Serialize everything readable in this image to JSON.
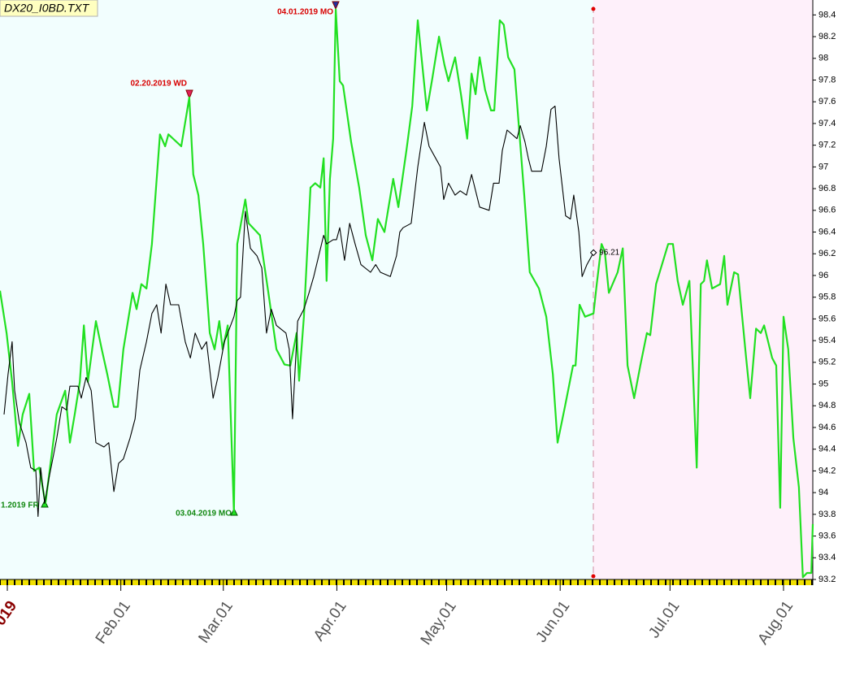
{
  "chart_data": {
    "type": "line",
    "title": "DX20_I0BD.TXT",
    "annotations": [
      "04.01.2019 MO",
      "02.20.2019 WD",
      "03.04.2019 MO",
      "1.2019 FR"
    ],
    "xlim": [
      -1,
      221
    ],
    "ylim": [
      93.2,
      98.5
    ],
    "xticks": [
      {
        "value": 1,
        "label": "019"
      },
      {
        "value": 32,
        "label": "Feb.01"
      },
      {
        "value": 60,
        "label": "Mar.01"
      },
      {
        "value": 91,
        "label": "Apr.01"
      },
      {
        "value": 121,
        "label": "May.01"
      },
      {
        "value": 152,
        "label": "Jun.01"
      },
      {
        "value": 182,
        "label": "Jul.01"
      },
      {
        "value": 213,
        "label": "Aug.01"
      }
    ],
    "yticks": [
      93.2,
      93.4,
      93.6,
      93.8,
      94,
      94.2,
      94.4,
      94.6,
      94.8,
      95,
      95.2,
      95.4,
      95.6,
      95.8,
      96,
      96.2,
      96.4,
      96.6,
      96.8,
      97,
      97.2,
      97.4,
      97.6,
      97.8,
      98,
      98.2,
      98.4
    ],
    "series": [
      {
        "color": "#22e022",
        "x": [
          -1,
          0.8,
          2.3,
          3.9,
          5.2,
          7.0,
          8.3,
          9.7,
          11.4,
          12.8,
          14.5,
          16.8,
          18.1,
          19.4,
          20.8,
          21.9,
          23.0,
          25.2,
          26.8,
          28.3,
          30.1,
          31.2,
          32.7,
          35.2,
          36.3,
          37.6,
          39.0,
          40.5,
          42.7,
          44.1,
          45.0,
          48.5,
          50.7,
          51.8,
          53.2,
          54.5,
          56.3,
          57.6,
          58.9,
          59.8,
          61.2,
          62.9,
          63.8,
          66.0,
          66.9,
          70.0,
          72.3,
          74.5,
          76.7,
          78.3,
          80.0,
          80.7,
          82.0,
          83.8,
          85.1,
          86.5,
          87.4,
          88.2,
          89.1,
          90.0,
          90.7,
          91.8,
          92.7,
          94.9,
          97.1,
          98.9,
          100.7,
          102.2,
          104.0,
          106.4,
          107.8,
          110.0,
          111.6,
          113.1,
          115.6,
          117.1,
          118.9,
          120.4,
          121.5,
          123.3,
          124.9,
          126.6,
          127.8,
          128.9,
          130.0,
          131.5,
          133.1,
          134.0,
          135.5,
          136.6,
          137.8,
          139.5,
          142.2,
          143.7,
          146.2,
          148.2,
          150.0,
          151.3,
          153.3,
          155.5,
          156.2,
          157.3,
          158.8,
          161.1,
          162.0,
          163.3,
          164.2,
          165.3,
          167.7,
          169.1,
          170.4,
          172.2,
          173.9,
          175.7,
          176.6,
          178.2,
          181.5,
          182.8,
          184.1,
          185.5,
          187.3,
          189.3,
          190.4,
          191.3,
          192.1,
          193.5,
          195.7,
          196.8,
          197.7,
          199.5,
          200.6,
          202.8,
          203.9,
          205.5,
          206.8,
          207.7,
          209.9,
          211.0,
          212.1,
          213.0,
          214.3,
          215.7,
          217.2,
          218.3,
          219.4,
          220.6,
          221.0
        ],
        "values": [
          95.86,
          95.47,
          95.02,
          94.43,
          94.72,
          94.91,
          94.2,
          94.23,
          93.9,
          94.27,
          94.72,
          94.94,
          94.46,
          94.72,
          95.02,
          95.54,
          95.02,
          95.58,
          95.32,
          95.09,
          94.79,
          94.79,
          95.32,
          95.84,
          95.69,
          95.92,
          95.88,
          96.29,
          97.3,
          97.19,
          97.3,
          97.19,
          97.64,
          96.93,
          96.74,
          96.29,
          95.47,
          95.32,
          95.58,
          95.32,
          95.54,
          93.82,
          96.29,
          96.7,
          96.48,
          96.37,
          95.84,
          95.32,
          95.18,
          95.17,
          95.47,
          95.03,
          95.62,
          96.81,
          96.85,
          96.81,
          97.08,
          95.95,
          96.89,
          97.26,
          98.45,
          97.79,
          97.75,
          97.23,
          96.81,
          96.37,
          96.14,
          96.52,
          96.4,
          96.89,
          96.63,
          97.15,
          97.56,
          98.35,
          97.52,
          97.82,
          98.2,
          97.94,
          97.79,
          98.01,
          97.67,
          97.26,
          97.86,
          97.67,
          98.01,
          97.71,
          97.52,
          97.52,
          98.35,
          98.31,
          98.01,
          97.9,
          96.74,
          96.03,
          95.88,
          95.62,
          95.09,
          94.46,
          94.79,
          95.17,
          95.17,
          95.73,
          95.62,
          95.65,
          95.92,
          96.29,
          96.22,
          95.84,
          96.03,
          96.25,
          95.17,
          94.87,
          95.17,
          95.47,
          95.45,
          95.92,
          96.29,
          96.29,
          95.95,
          95.73,
          95.95,
          94.23,
          95.92,
          95.95,
          96.14,
          95.88,
          95.92,
          96.18,
          95.73,
          96.03,
          96.01,
          95.24,
          94.87,
          95.51,
          95.47,
          95.54,
          95.24,
          95.17,
          93.86,
          95.62,
          95.32,
          94.5,
          94.05,
          93.22,
          93.26,
          93.26,
          93.71
        ]
      },
      {
        "color": "#000000",
        "x": [
          0.1,
          1.2,
          2.3,
          3.0,
          4.3,
          6.1,
          7.4,
          8.8,
          9.4,
          10.1,
          11.2,
          12.3,
          13.4,
          14.5,
          15.9,
          17.2,
          18.1,
          20.3,
          21.2,
          22.5,
          23.9,
          25.2,
          27.4,
          28.7,
          30.1,
          31.4,
          32.7,
          34.5,
          35.9,
          37.2,
          39.0,
          40.5,
          41.8,
          43.0,
          44.3,
          45.6,
          47.8,
          49.6,
          51.0,
          52.3,
          54.1,
          55.4,
          57.2,
          58.5,
          60.3,
          61.2,
          62.9,
          63.8,
          64.7,
          66.0,
          67.4,
          69.2,
          70.5,
          71.8,
          73.1,
          74.5,
          77.1,
          78.0,
          78.9,
          80.3,
          82.0,
          83.4,
          84.7,
          87.4,
          88.2,
          90.0,
          90.9,
          91.8,
          93.1,
          94.5,
          96.0,
          97.6,
          100.2,
          101.6,
          102.9,
          105.6,
          107.3,
          108.2,
          109.1,
          111.3,
          113.1,
          114.9,
          116.2,
          118.0,
          119.3,
          120.2,
          121.5,
          123.3,
          124.7,
          126.4,
          127.8,
          130.0,
          132.6,
          133.8,
          135.3,
          136.2,
          137.5,
          140.2,
          141.1,
          142.4,
          143.3,
          144.2,
          146.9,
          148.2,
          149.5,
          150.6,
          151.7,
          153.5,
          154.8,
          155.7,
          157.1,
          158.0,
          159.3,
          161.1
        ],
        "values": [
          94.72,
          95.09,
          95.39,
          94.94,
          94.64,
          94.46,
          94.23,
          94.2,
          93.78,
          94.23,
          93.9,
          94.12,
          94.31,
          94.5,
          94.79,
          94.76,
          94.98,
          94.98,
          94.87,
          95.06,
          94.94,
          94.46,
          94.42,
          94.46,
          94.01,
          94.27,
          94.31,
          94.5,
          94.68,
          95.13,
          95.39,
          95.65,
          95.73,
          95.47,
          95.92,
          95.73,
          95.73,
          95.39,
          95.24,
          95.47,
          95.32,
          95.39,
          94.87,
          95.06,
          95.39,
          95.47,
          95.62,
          95.77,
          95.8,
          96.59,
          96.25,
          96.18,
          96.07,
          95.47,
          95.69,
          95.54,
          95.47,
          95.32,
          94.68,
          95.58,
          95.69,
          95.84,
          95.99,
          96.37,
          96.29,
          96.33,
          96.33,
          96.44,
          96.14,
          96.48,
          96.29,
          96.1,
          96.03,
          96.1,
          96.03,
          95.99,
          96.18,
          96.4,
          96.44,
          96.48,
          97.0,
          97.41,
          97.19,
          97.08,
          97.0,
          96.7,
          96.85,
          96.74,
          96.78,
          96.74,
          96.93,
          96.63,
          96.6,
          96.85,
          96.85,
          97.15,
          97.34,
          97.26,
          97.38,
          97.23,
          97.08,
          96.96,
          96.96,
          97.19,
          97.53,
          97.56,
          97.08,
          96.55,
          96.52,
          96.74,
          96.4,
          95.99,
          96.1,
          96.21
        ]
      }
    ]
  }
}
